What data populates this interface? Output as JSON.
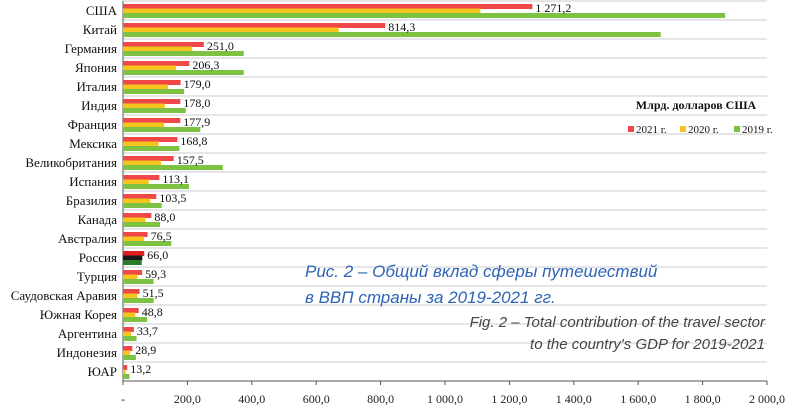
{
  "chart_data": {
    "type": "bar",
    "orientation": "horizontal",
    "legend_title": "Млрд. долларов США",
    "legend_position": "right",
    "categories": [
      "США",
      "Китай",
      "Германия",
      "Япония",
      "Италия",
      "Индия",
      "Франция",
      "Мексика",
      "Великобритания",
      "Испания",
      "Бразилия",
      "Канада",
      "Австралия",
      "Россия",
      "Турция",
      "Саудовская Аравия",
      "Южная Корея",
      "Аргентина",
      "Индонезия",
      "ЮАР"
    ],
    "labels": [
      "1 271,2",
      "814,3",
      "251,0",
      "206,3",
      "179,0",
      "178,0",
      "177,9",
      "168,8",
      "157,5",
      "113,1",
      "103,5",
      "88,0",
      "76,5",
      "66,0",
      "59,3",
      "51,5",
      "48,8",
      "33,7",
      "28,9",
      "13,2"
    ],
    "series": [
      {
        "name": "2021 г.",
        "color": "#f04848",
        "values": [
          1271.2,
          814.3,
          251.0,
          206.3,
          179.0,
          178.0,
          177.9,
          168.8,
          157.5,
          113.1,
          103.5,
          88.0,
          76.5,
          66.0,
          59.3,
          51.5,
          48.8,
          33.7,
          28.9,
          13.2
        ]
      },
      {
        "name": "2020 г.",
        "color": "#f5c51e",
        "values": [
          1110,
          670,
          215,
          165,
          140,
          130,
          128,
          110,
          118,
          80,
          85,
          70,
          65,
          60,
          45,
          45,
          38,
          25,
          22,
          8
        ]
      },
      {
        "name": "2019 г.",
        "color": "#7dc242",
        "values": [
          1870,
          1670,
          375,
          375,
          190,
          195,
          240,
          175,
          310,
          205,
          120,
          115,
          150,
          58,
          95,
          95,
          75,
          42,
          40,
          20
        ]
      }
    ],
    "highlight": {
      "category": "Россия",
      "colors": [
        "#e02020",
        "#1a1a1a",
        "#2a7a2a"
      ]
    },
    "xlim": [
      0,
      2000
    ],
    "xticks": [
      0,
      200,
      400,
      600,
      800,
      1000,
      1200,
      1400,
      1600,
      1800,
      2000
    ],
    "xtick_labels": [
      "-",
      "200,0",
      "400,0",
      "600,0",
      "800,0",
      "1 000,0",
      "1 200,0",
      "1 400,0",
      "1 600,0",
      "1 800,0",
      "2 000,0"
    ],
    "grid": true
  },
  "caption": {
    "ru_line1": "Рис. 2 – Общий вклад сферы путешествий",
    "ru_line2": "в ВВП страны за 2019-2021 гг.",
    "en_line1": "Fig. 2 – Total contribution of the travel sector",
    "en_line2": "to the country's GDP for 2019-2021"
  }
}
